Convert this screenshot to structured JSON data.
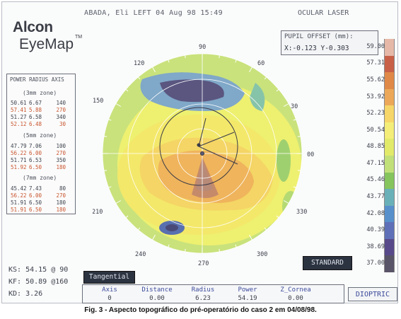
{
  "header": {
    "patient_line": "ABADA, Eli LEFT 04 Aug 98 15:49",
    "right_label": "OCULAR LASER"
  },
  "logo": {
    "line1": "Alcon",
    "line2": "EyeMap",
    "tm": "TM"
  },
  "power_radius_axis": {
    "title": "POWER RADIUS AXIS",
    "zones": [
      {
        "label": "(3mm zone)",
        "rows": [
          {
            "power": "50.61",
            "radius": "6.67",
            "axis": "140",
            "color": "#3a3f4a"
          },
          {
            "power": "57.41",
            "radius": "5.88",
            "axis": "270",
            "color": "#c9552e"
          },
          {
            "power": "51.27",
            "radius": "6.58",
            "axis": "340",
            "color": "#3a3f4a"
          },
          {
            "power": "52.12",
            "radius": "6.48",
            "axis": "30",
            "color": "#c9552e"
          }
        ]
      },
      {
        "label": "(5mm zone)",
        "rows": [
          {
            "power": "47.79",
            "radius": "7.06",
            "axis": "100",
            "color": "#3a3f4a"
          },
          {
            "power": "56.22",
            "radius": "6.00",
            "axis": "270",
            "color": "#c9552e"
          },
          {
            "power": "51.71",
            "radius": "6.53",
            "axis": "350",
            "color": "#3a3f4a"
          },
          {
            "power": "51.92",
            "radius": "6.50",
            "axis": "180",
            "color": "#c9552e"
          }
        ]
      },
      {
        "label": "(7mm zone)",
        "rows": [
          {
            "power": "45.42",
            "radius": "7.43",
            "axis": "80",
            "color": "#3a3f4a"
          },
          {
            "power": "56.22",
            "radius": "6.00",
            "axis": "270",
            "color": "#c9552e"
          },
          {
            "power": "51.91",
            "radius": "6.50",
            "axis": "180",
            "color": "#3a3f4a"
          },
          {
            "power": "51.91",
            "radius": "6.50",
            "axis": "180",
            "color": "#c9552e"
          }
        ]
      }
    ]
  },
  "pupil_offset": {
    "title": "PUPIL OFFSET (mm):",
    "value": "X:-0.123 Y-0.303"
  },
  "color_scale": [
    {
      "label": "59.00",
      "color": "#e6b8a8"
    },
    {
      "label": "57.31",
      "color": "#c86048"
    },
    {
      "label": "55.62",
      "color": "#e08848"
    },
    {
      "label": "53.92",
      "color": "#eca858"
    },
    {
      "label": "52.23",
      "color": "#f6d668"
    },
    {
      "label": "50.54",
      "color": "#f4ee78"
    },
    {
      "label": "48.85",
      "color": "#e2ea6a"
    },
    {
      "label": "47.15",
      "color": "#c2e07a"
    },
    {
      "label": "45.46",
      "color": "#86c45e"
    },
    {
      "label": "43.77",
      "color": "#6ab0b8"
    },
    {
      "label": "42.08",
      "color": "#5890cc"
    },
    {
      "label": "40.39",
      "color": "#6070b8"
    },
    {
      "label": "38.69",
      "color": "#584a8a"
    },
    {
      "label": "37.00",
      "color": "#5a5468"
    }
  ],
  "axis_labels": [
    "90",
    "60",
    "30",
    "00",
    "330",
    "300",
    "270",
    "240",
    "210",
    "180",
    "150",
    "120"
  ],
  "buttons": {
    "tangential": "Tangential",
    "standard": "STANDARD",
    "dioptric": "DIOPTRIC"
  },
  "k_values": [
    "KS: 54.15 @ 90",
    "KF: 50.89 @160",
    "KD: 3.26"
  ],
  "readout": {
    "headers": [
      "Axis",
      "Distance",
      "Radius",
      "Power",
      "Z_Cornea"
    ],
    "values": [
      "0",
      "0.00",
      "6.23",
      "54.19",
      "0.00"
    ]
  },
  "caption": "Fig. 3 - Aspecto topográfico do pré-operatório do caso 2 em 04/08/98.",
  "colors": {
    "frame_border": "#b8bcc4",
    "accent_blue": "#3a4a9a",
    "dark_button": "#2c3340"
  }
}
